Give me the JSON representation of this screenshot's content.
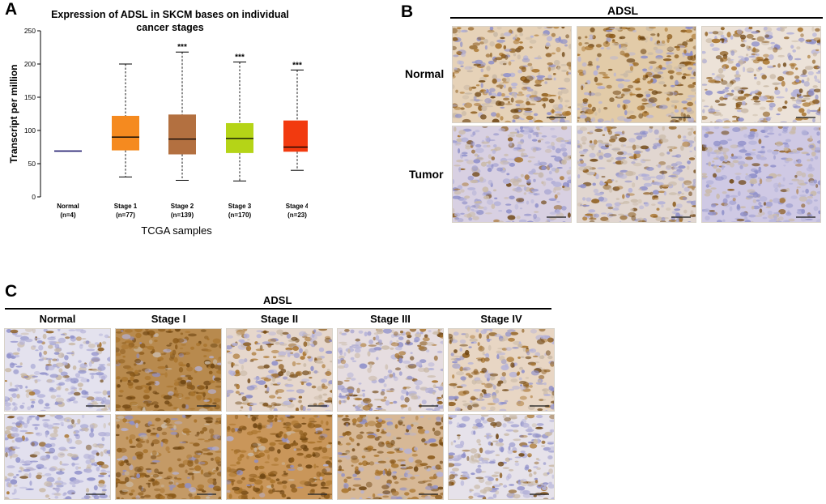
{
  "panel_a": {
    "letter": "A",
    "chart_data": {
      "type": "boxplot",
      "title": "Expression of ADSL in SKCM bases on individual cancer stages",
      "xlabel": "TCGA samples",
      "ylabel": "Transcript per million",
      "ylim": [
        0,
        250
      ],
      "yticks": [
        0,
        50,
        100,
        150,
        200,
        250
      ],
      "categories": [
        {
          "name": "Normal",
          "n": "(n=4)",
          "min": 69,
          "q1": 69,
          "median": 69,
          "q3": 69,
          "max": 69,
          "color": "#1f1a6e",
          "sig": ""
        },
        {
          "name": "Stage 1",
          "n": "(n=77)",
          "min": 30,
          "q1": 70,
          "median": 90,
          "q3": 122,
          "max": 200,
          "color": "#f58a1f",
          "sig": ""
        },
        {
          "name": "Stage 2",
          "n": "(n=139)",
          "min": 25,
          "q1": 64,
          "median": 87,
          "q3": 124,
          "max": 218,
          "color": "#b37040",
          "sig": "***"
        },
        {
          "name": "Stage 3",
          "n": "(n=170)",
          "min": 24,
          "q1": 66,
          "median": 88,
          "q3": 111,
          "max": 203,
          "color": "#b5d417",
          "sig": "***"
        },
        {
          "name": "Stage 4",
          "n": "(n=23)",
          "min": 40,
          "q1": 68,
          "median": 75,
          "q3": 115,
          "max": 191,
          "color": "#f23a0f",
          "sig": "***"
        }
      ]
    }
  },
  "panel_b": {
    "letter": "B",
    "header": "ADSL",
    "rows": [
      "Normal",
      "Tumor"
    ]
  },
  "panel_c": {
    "letter": "C",
    "header": "ADSL",
    "columns": [
      "Normal",
      "Stage I",
      "Stage II",
      "Stage III",
      "Stage IV"
    ]
  },
  "colors": {
    "stain_light": "#e9ddd0",
    "stain_brown": "#8b5a1a",
    "hematoxylin": "#8e8fc9"
  }
}
